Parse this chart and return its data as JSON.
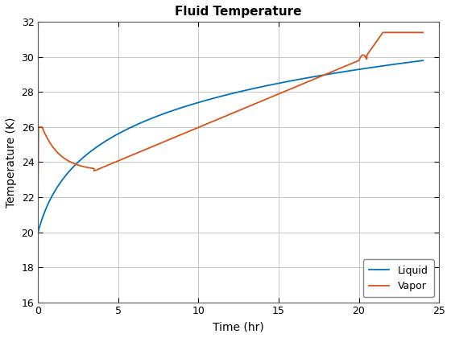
{
  "title": "Fluid Temperature",
  "xlabel": "Time (hr)",
  "ylabel": "Temperature (K)",
  "xlim": [
    0,
    25
  ],
  "ylim": [
    16,
    32
  ],
  "xticks": [
    0,
    5,
    10,
    15,
    20,
    25
  ],
  "yticks": [
    16,
    18,
    20,
    22,
    24,
    26,
    28,
    30,
    32
  ],
  "liquid_color": "#0072BD",
  "vapor_color": "#D95319",
  "legend_labels": [
    "Liquid",
    "Vapor"
  ],
  "background_color": "#FFFFFF",
  "grid_color": "#C8C8C8"
}
